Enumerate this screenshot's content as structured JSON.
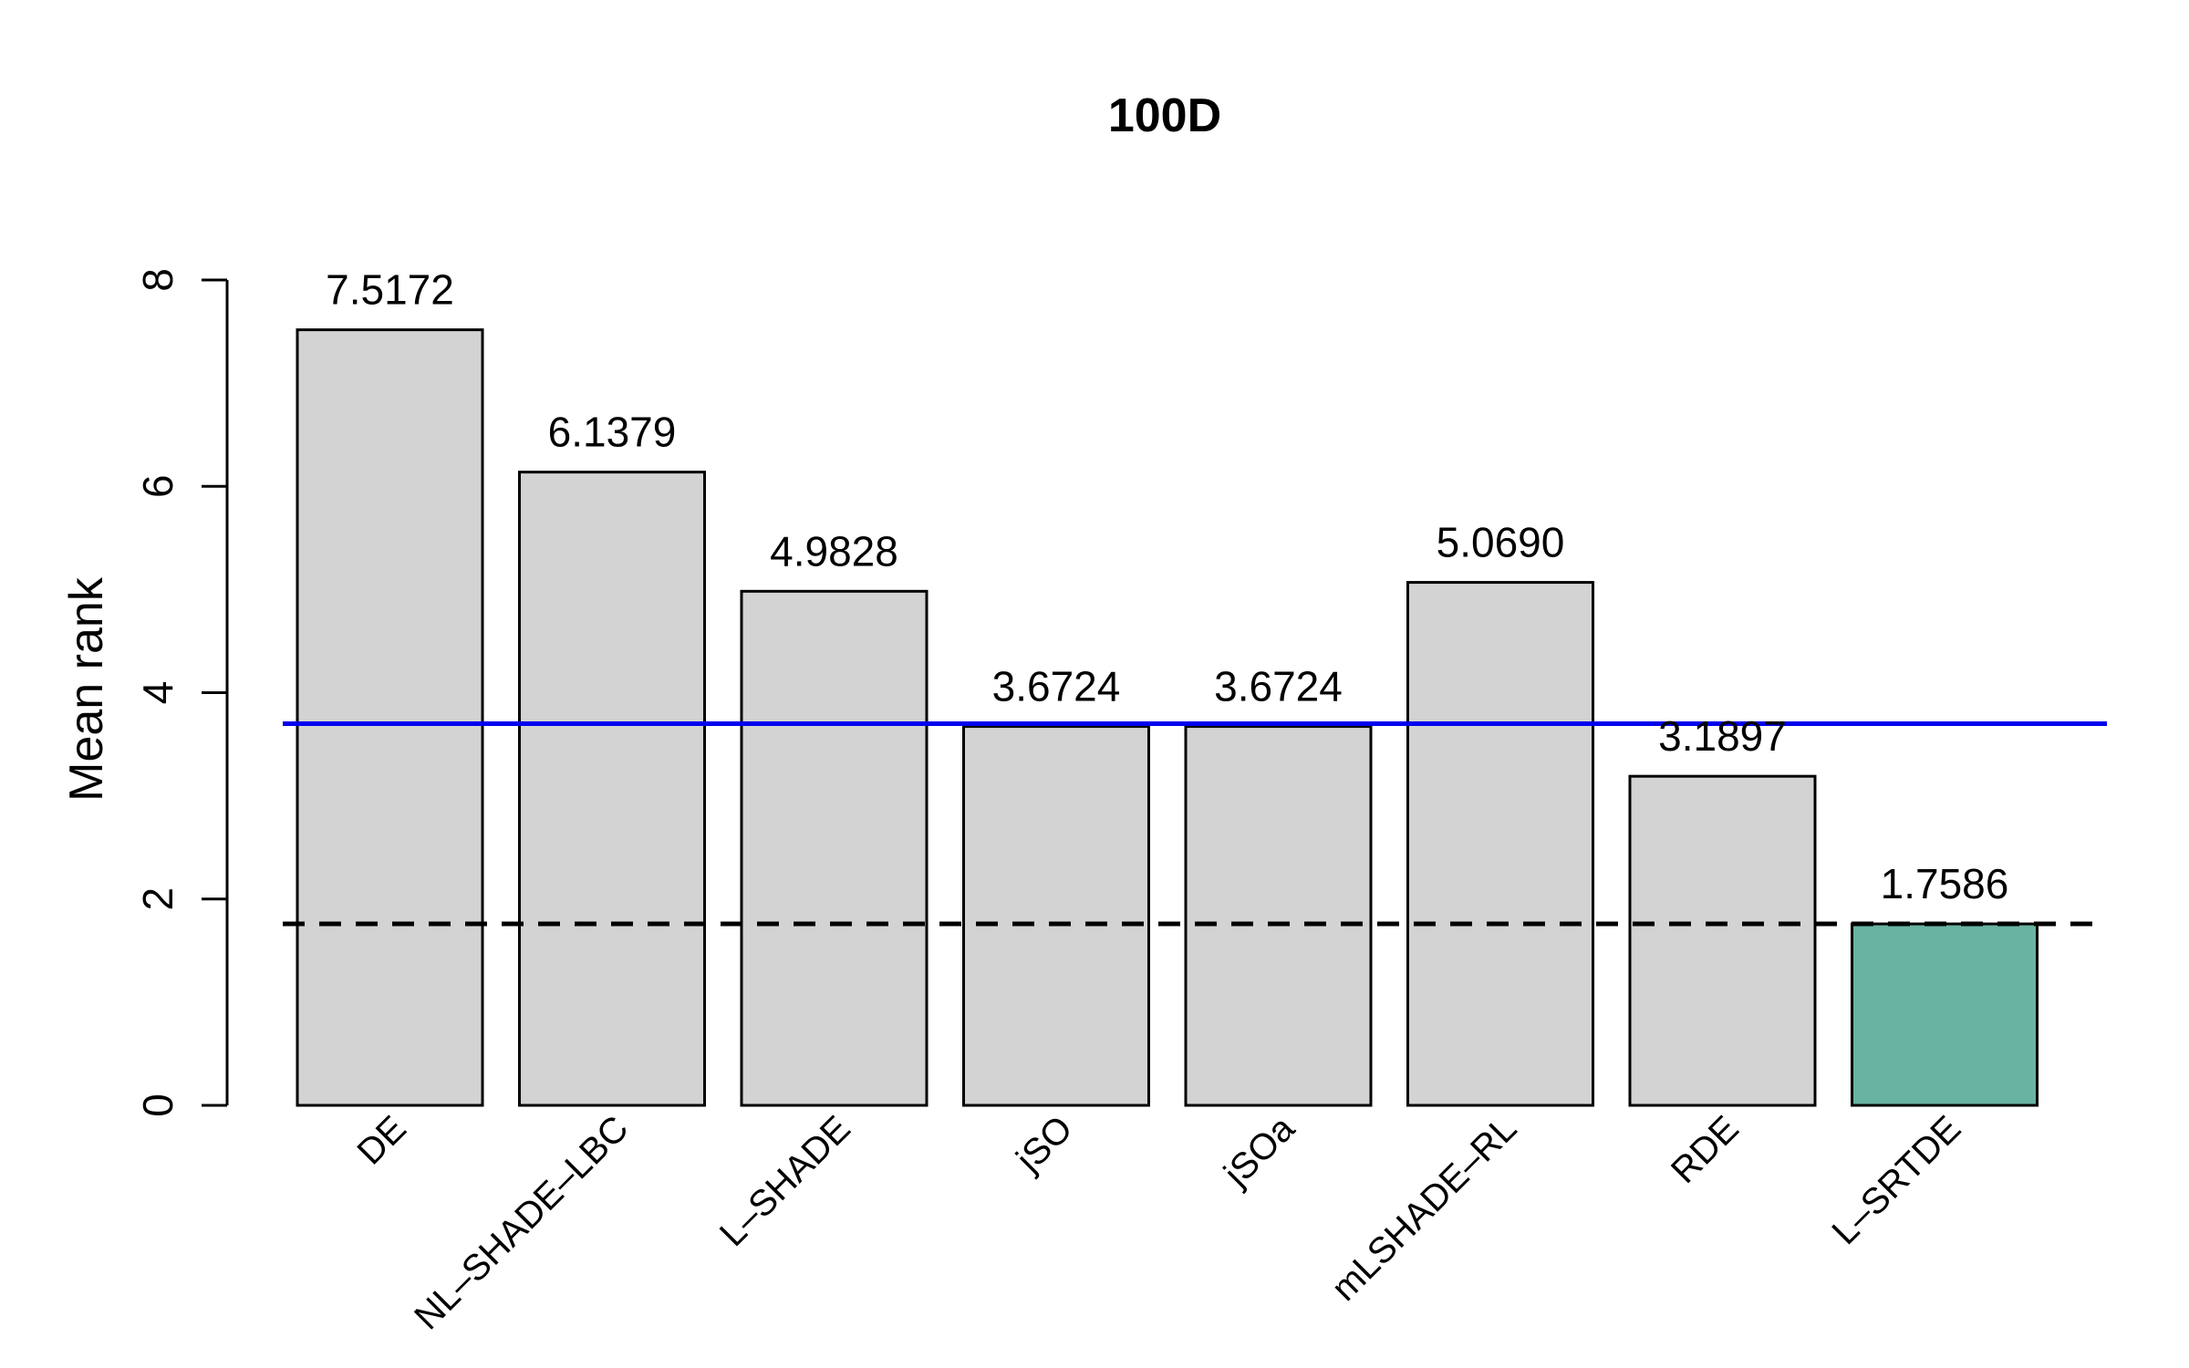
{
  "chart_data": {
    "type": "bar",
    "title": "100D",
    "xlabel": "",
    "ylabel": "Mean rank",
    "ylim": [
      0,
      8
    ],
    "yticks": [
      0,
      2,
      4,
      6,
      8
    ],
    "ytick_labels": [
      "0",
      "2",
      "4",
      "6",
      "8"
    ],
    "categories": [
      "DE",
      "NL–SHADE–LBC",
      "L–SHADE",
      "jSO",
      "jSOa",
      "mLSHADE–RL",
      "RDE",
      "L–SRTDE"
    ],
    "values": [
      7.5172,
      6.1379,
      4.9828,
      3.6724,
      3.6724,
      5.069,
      3.1897,
      1.7586
    ],
    "value_labels": [
      "7.5172",
      "6.1379",
      "4.9828",
      "3.6724",
      "3.6724",
      "5.0690",
      "3.1897",
      "1.7586"
    ],
    "bar_fill_default": "#d3d3d3",
    "highlight_index": 7,
    "highlight_fill": "#69b3a2",
    "bar_stroke": "#000000",
    "reference_lines": [
      {
        "value": 3.7,
        "color": "#0000ee",
        "style": "solid"
      },
      {
        "value": 1.7586,
        "color": "#000000",
        "style": "dashed"
      }
    ],
    "grid": false,
    "legend": "none"
  }
}
